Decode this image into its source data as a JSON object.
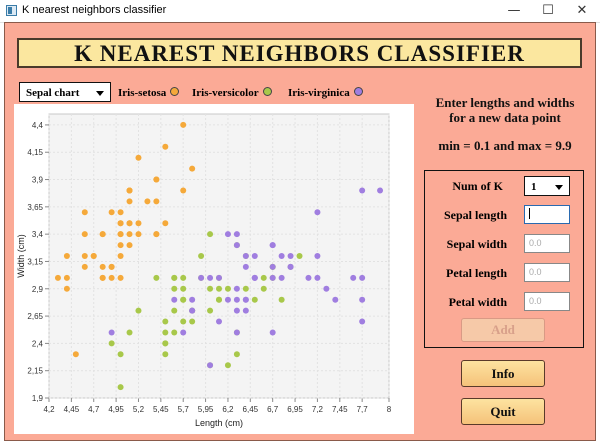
{
  "window": {
    "title": "K nearest neighbors classifier",
    "minimize": "—",
    "maximize": "☐",
    "close": "✕"
  },
  "header": {
    "title": "K NEAREST NEIGHBORS CLASSIFIER"
  },
  "chart_select": {
    "value": "Sepal chart"
  },
  "legend": [
    {
      "label": "Iris-setosa",
      "color": "#f5a93a"
    },
    {
      "label": "Iris-versicolor",
      "color": "#a8c84a"
    },
    {
      "label": "Iris-virginica",
      "color": "#a07ee0"
    }
  ],
  "instructions": {
    "line1": "Enter lengths and widths",
    "line2": "for a new data point",
    "range": "min = 0.1 and max = 9.9"
  },
  "form": {
    "k_label": "Num of K",
    "k_value": "1",
    "sepal_length_label": "Sepal length",
    "sepal_length_value": "",
    "sepal_width_label": "Sepal width",
    "sepal_width_placeholder": "0.0",
    "petal_length_label": "Petal length",
    "petal_length_placeholder": "0.0",
    "petal_width_label": "Petal width",
    "petal_width_placeholder": "0.0",
    "add_label": "Add"
  },
  "buttons": {
    "info": "Info",
    "quit": "Quit"
  },
  "chart_data": {
    "type": "scatter",
    "xlabel": "Length (cm)",
    "ylabel": "Width (cm)",
    "xlim": [
      4.2,
      8
    ],
    "ylim": [
      1.9,
      4.5
    ],
    "x_ticks": [
      "4,2",
      "4,45",
      "4,7",
      "4,95",
      "5,2",
      "5,45",
      "5,7",
      "5,95",
      "6,2",
      "6,45",
      "6,7",
      "6,95",
      "7,2",
      "7,45",
      "7,7",
      "8"
    ],
    "y_ticks": [
      "1,9",
      "2,15",
      "2,4",
      "2,65",
      "2,9",
      "3,15",
      "3,4",
      "3,65",
      "3,9",
      "4,15",
      "4,4"
    ],
    "grid": true,
    "series": [
      {
        "name": "Iris-setosa",
        "color": "#f5a93a",
        "points": [
          [
            5.1,
            3.5
          ],
          [
            4.9,
            3.0
          ],
          [
            4.7,
            3.2
          ],
          [
            4.6,
            3.1
          ],
          [
            5.0,
            3.6
          ],
          [
            5.4,
            3.9
          ],
          [
            4.6,
            3.4
          ],
          [
            5.0,
            3.4
          ],
          [
            4.4,
            2.9
          ],
          [
            4.9,
            3.1
          ],
          [
            5.4,
            3.7
          ],
          [
            4.8,
            3.4
          ],
          [
            4.8,
            3.0
          ],
          [
            4.3,
            3.0
          ],
          [
            5.8,
            4.0
          ],
          [
            5.7,
            4.4
          ],
          [
            5.4,
            3.9
          ],
          [
            5.1,
            3.5
          ],
          [
            5.7,
            3.8
          ],
          [
            5.1,
            3.8
          ],
          [
            5.4,
            3.4
          ],
          [
            5.1,
            3.7
          ],
          [
            4.6,
            3.6
          ],
          [
            5.1,
            3.3
          ],
          [
            4.8,
            3.4
          ],
          [
            5.0,
            3.0
          ],
          [
            5.0,
            3.4
          ],
          [
            5.2,
            3.5
          ],
          [
            5.2,
            3.4
          ],
          [
            4.7,
            3.2
          ],
          [
            4.8,
            3.1
          ],
          [
            5.4,
            3.4
          ],
          [
            5.2,
            4.1
          ],
          [
            5.5,
            4.2
          ],
          [
            4.9,
            3.1
          ],
          [
            5.0,
            3.2
          ],
          [
            5.5,
            3.5
          ],
          [
            4.9,
            3.6
          ],
          [
            4.4,
            3.0
          ],
          [
            5.1,
            3.4
          ],
          [
            5.0,
            3.5
          ],
          [
            4.5,
            2.3
          ],
          [
            4.4,
            3.2
          ],
          [
            5.0,
            3.5
          ],
          [
            5.1,
            3.8
          ],
          [
            4.8,
            3.0
          ],
          [
            5.1,
            3.8
          ],
          [
            4.6,
            3.2
          ],
          [
            5.3,
            3.7
          ],
          [
            5.0,
            3.3
          ]
        ]
      },
      {
        "name": "Iris-versicolor",
        "color": "#a8c84a",
        "points": [
          [
            7.0,
            3.2
          ],
          [
            6.4,
            3.2
          ],
          [
            6.9,
            3.1
          ],
          [
            5.5,
            2.3
          ],
          [
            6.5,
            2.8
          ],
          [
            5.7,
            2.8
          ],
          [
            6.3,
            3.3
          ],
          [
            4.9,
            2.4
          ],
          [
            6.6,
            2.9
          ],
          [
            5.2,
            2.7
          ],
          [
            5.0,
            2.0
          ],
          [
            5.9,
            3.0
          ],
          [
            6.0,
            2.2
          ],
          [
            6.1,
            2.9
          ],
          [
            5.6,
            2.9
          ],
          [
            6.7,
            3.1
          ],
          [
            5.6,
            3.0
          ],
          [
            5.8,
            2.7
          ],
          [
            6.2,
            2.2
          ],
          [
            5.6,
            2.5
          ],
          [
            5.9,
            3.2
          ],
          [
            6.1,
            2.8
          ],
          [
            6.3,
            2.5
          ],
          [
            6.1,
            2.8
          ],
          [
            6.4,
            2.9
          ],
          [
            6.6,
            3.0
          ],
          [
            6.8,
            2.8
          ],
          [
            6.7,
            3.0
          ],
          [
            6.0,
            2.9
          ],
          [
            5.7,
            2.6
          ],
          [
            5.5,
            2.4
          ],
          [
            5.5,
            2.4
          ],
          [
            5.8,
            2.7
          ],
          [
            6.0,
            2.7
          ],
          [
            5.4,
            3.0
          ],
          [
            6.0,
            3.4
          ],
          [
            6.7,
            3.1
          ],
          [
            6.3,
            2.3
          ],
          [
            5.6,
            3.0
          ],
          [
            5.5,
            2.5
          ],
          [
            5.5,
            2.6
          ],
          [
            6.1,
            3.0
          ],
          [
            5.8,
            2.6
          ],
          [
            5.0,
            2.3
          ],
          [
            5.6,
            2.7
          ],
          [
            5.7,
            3.0
          ],
          [
            5.7,
            2.9
          ],
          [
            6.2,
            2.9
          ],
          [
            5.1,
            2.5
          ],
          [
            5.7,
            2.8
          ]
        ]
      },
      {
        "name": "Iris-virginica",
        "color": "#a07ee0",
        "points": [
          [
            6.3,
            3.3
          ],
          [
            5.8,
            2.7
          ],
          [
            7.1,
            3.0
          ],
          [
            6.3,
            2.9
          ],
          [
            6.5,
            3.0
          ],
          [
            7.6,
            3.0
          ],
          [
            4.9,
            2.5
          ],
          [
            7.3,
            2.9
          ],
          [
            6.7,
            2.5
          ],
          [
            7.2,
            3.6
          ],
          [
            6.5,
            3.2
          ],
          [
            6.4,
            2.7
          ],
          [
            6.8,
            3.0
          ],
          [
            5.7,
            2.5
          ],
          [
            5.8,
            2.8
          ],
          [
            6.4,
            3.2
          ],
          [
            6.5,
            3.0
          ],
          [
            7.7,
            3.8
          ],
          [
            7.7,
            2.6
          ],
          [
            6.0,
            2.2
          ],
          [
            6.9,
            3.2
          ],
          [
            5.6,
            2.8
          ],
          [
            7.7,
            2.8
          ],
          [
            6.3,
            2.7
          ],
          [
            6.7,
            3.3
          ],
          [
            7.2,
            3.2
          ],
          [
            6.2,
            2.8
          ],
          [
            6.1,
            3.0
          ],
          [
            6.4,
            2.8
          ],
          [
            7.2,
            3.0
          ],
          [
            7.4,
            2.8
          ],
          [
            7.9,
            3.8
          ],
          [
            6.4,
            2.8
          ],
          [
            6.3,
            2.8
          ],
          [
            6.1,
            2.6
          ],
          [
            7.7,
            3.0
          ],
          [
            6.3,
            3.4
          ],
          [
            6.4,
            3.1
          ],
          [
            6.0,
            3.0
          ],
          [
            6.9,
            3.1
          ],
          [
            6.7,
            3.1
          ],
          [
            6.9,
            3.1
          ],
          [
            5.8,
            2.7
          ],
          [
            6.8,
            3.2
          ],
          [
            6.7,
            3.3
          ],
          [
            6.7,
            3.0
          ],
          [
            6.3,
            2.5
          ],
          [
            6.5,
            3.0
          ],
          [
            6.2,
            3.4
          ],
          [
            5.9,
            3.0
          ]
        ]
      }
    ]
  }
}
